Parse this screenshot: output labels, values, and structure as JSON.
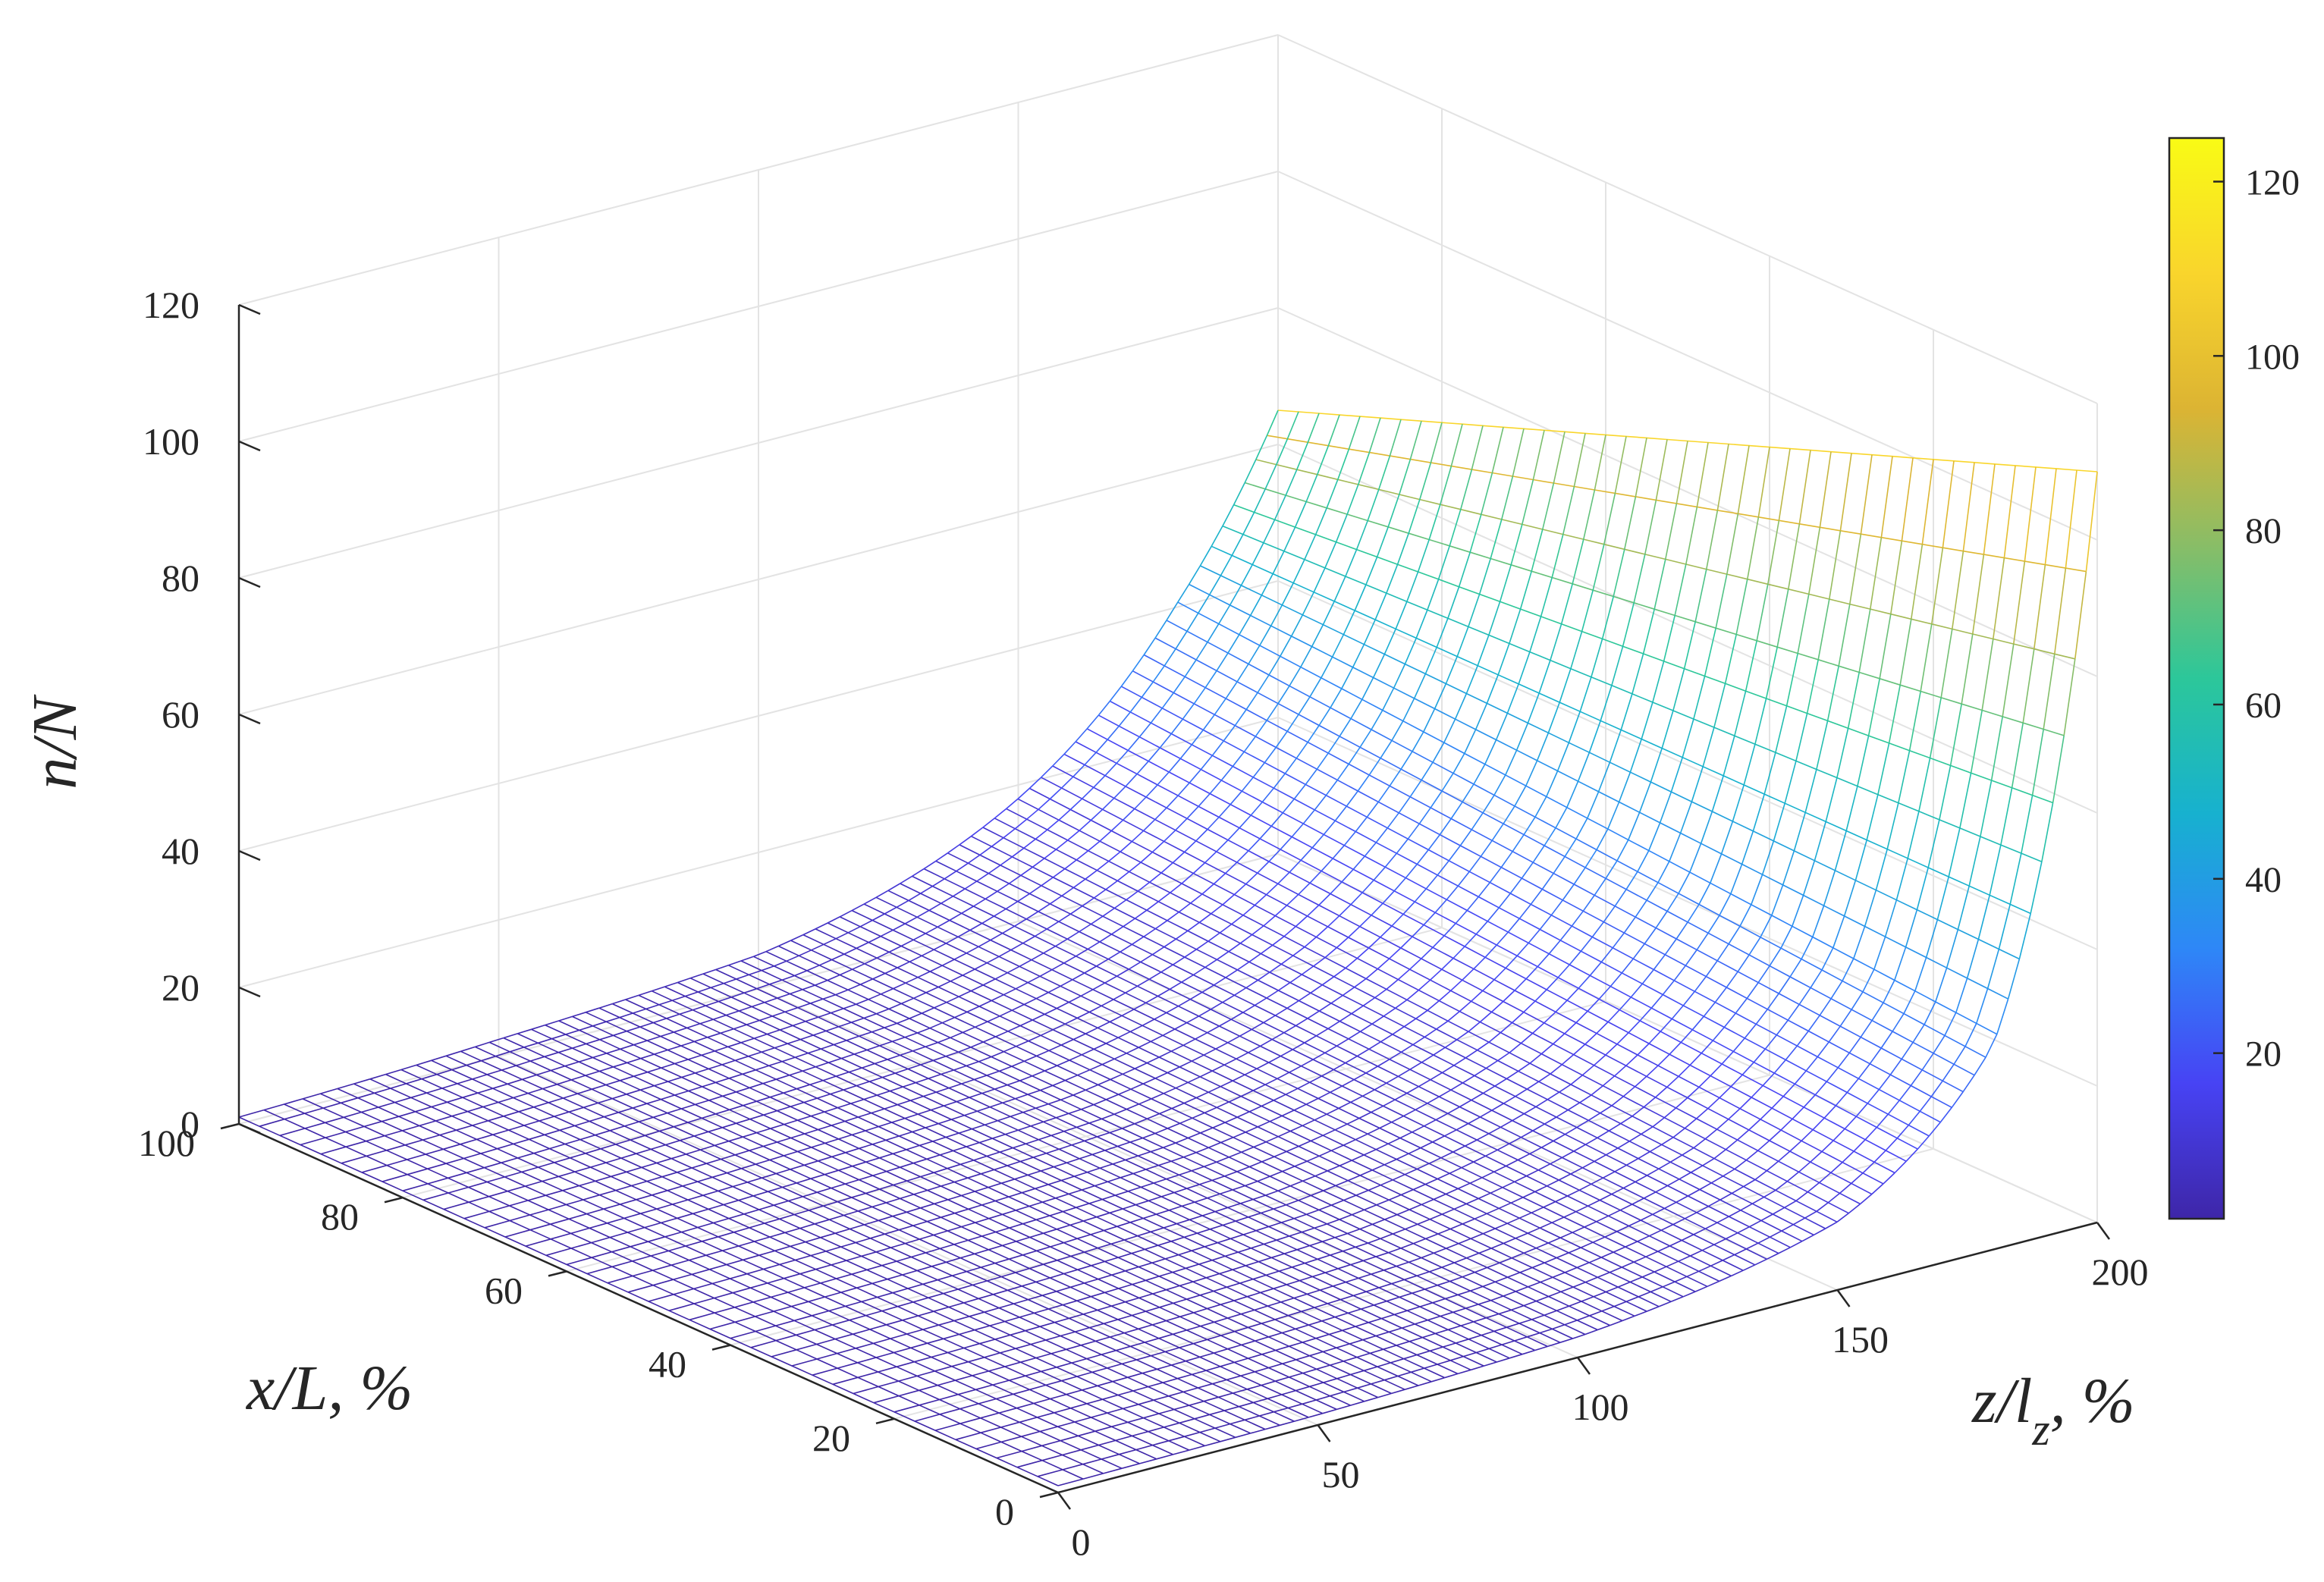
{
  "chart_data": {
    "type": "surface",
    "xlabel": "x/L, %",
    "ylabel_main": "z/l",
    "ylabel_sub": "z",
    "ylabel_suffix": ", %",
    "zlabel": "n/N",
    "x_axis": {
      "range": [
        0,
        100
      ],
      "ticks": [
        0,
        20,
        40,
        60,
        80,
        100
      ]
    },
    "z_axis": {
      "range": [
        0,
        200
      ],
      "ticks": [
        0,
        50,
        100,
        150,
        200
      ]
    },
    "n_axis": {
      "range": [
        0,
        120
      ],
      "ticks": [
        0,
        20,
        40,
        60,
        80,
        100,
        120
      ]
    },
    "colorbar": {
      "range": [
        1,
        125
      ],
      "ticks": [
        20,
        40,
        60,
        80,
        100,
        120
      ],
      "colormap": "parula",
      "stops": [
        "#3e26a8",
        "#4743f4",
        "#2e87f7",
        "#17b1cf",
        "#2cc79a",
        "#8abd66",
        "#dcb433",
        "#f9d52c",
        "#f9fb15"
      ]
    },
    "surface_samples": {
      "z": [
        0,
        50,
        100,
        150,
        180,
        200
      ],
      "n": [
        1,
        2,
        4,
        11,
        33,
        125
      ],
      "n_at_x0": [
        1,
        1.5,
        3,
        10,
        30,
        110
      ],
      "n_at_x100": [
        1,
        2.5,
        5,
        18,
        40,
        65
      ]
    },
    "grid": true
  }
}
